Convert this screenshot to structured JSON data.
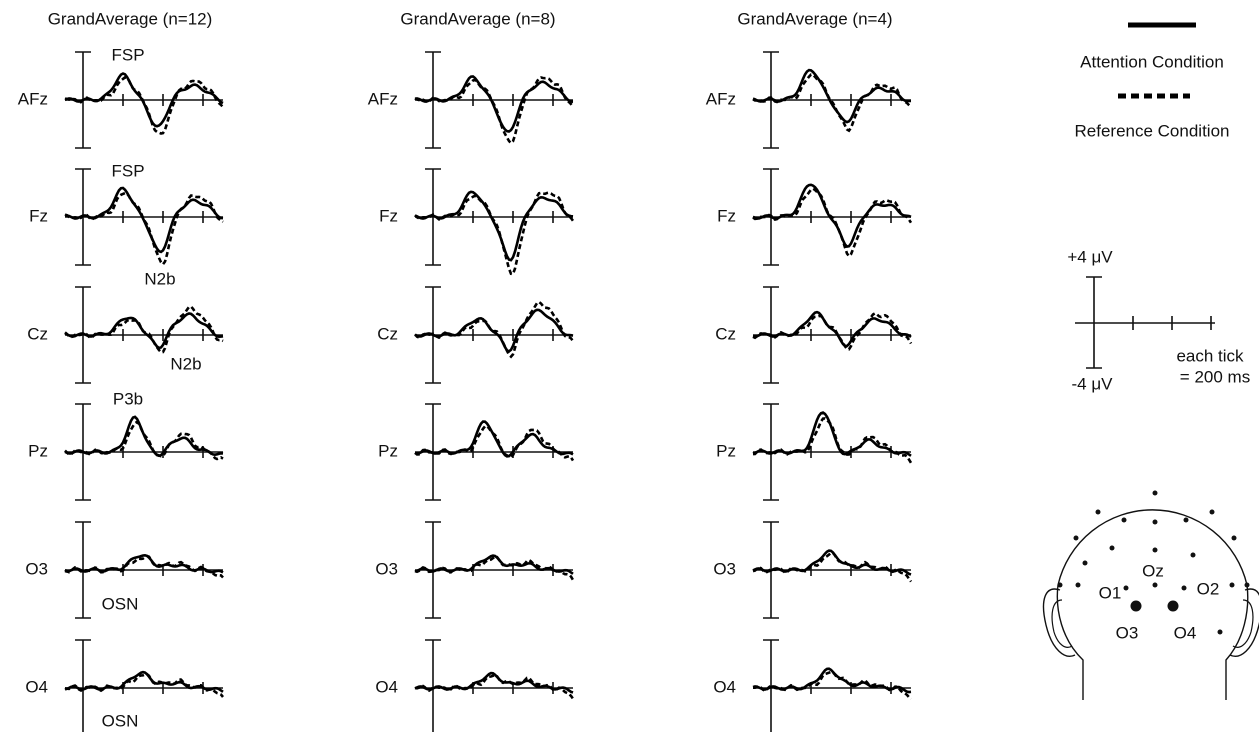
{
  "columns": [
    {
      "title": "GrandAverage (n=12)"
    },
    {
      "title": "GrandAverage (n=8)"
    },
    {
      "title": "GrandAverage (n=4)"
    }
  ],
  "rows": [
    "AFz",
    "Fz",
    "Cz",
    "Pz",
    "O3",
    "O4"
  ],
  "annotations": [
    "FSP",
    "FSP",
    "N2b",
    "N2b",
    "P3b",
    "OSN",
    "OSN"
  ],
  "legend": {
    "solid": "Attention Condition",
    "dashed": "Reference Condition"
  },
  "scale": {
    "top": "+4 μV",
    "bottom": "-4 μV",
    "tick_note": [
      "each tick",
      "= 200 ms"
    ]
  },
  "head": {
    "labels": [
      "O1",
      "Oz",
      "O2",
      "O3",
      "O4"
    ]
  }
}
